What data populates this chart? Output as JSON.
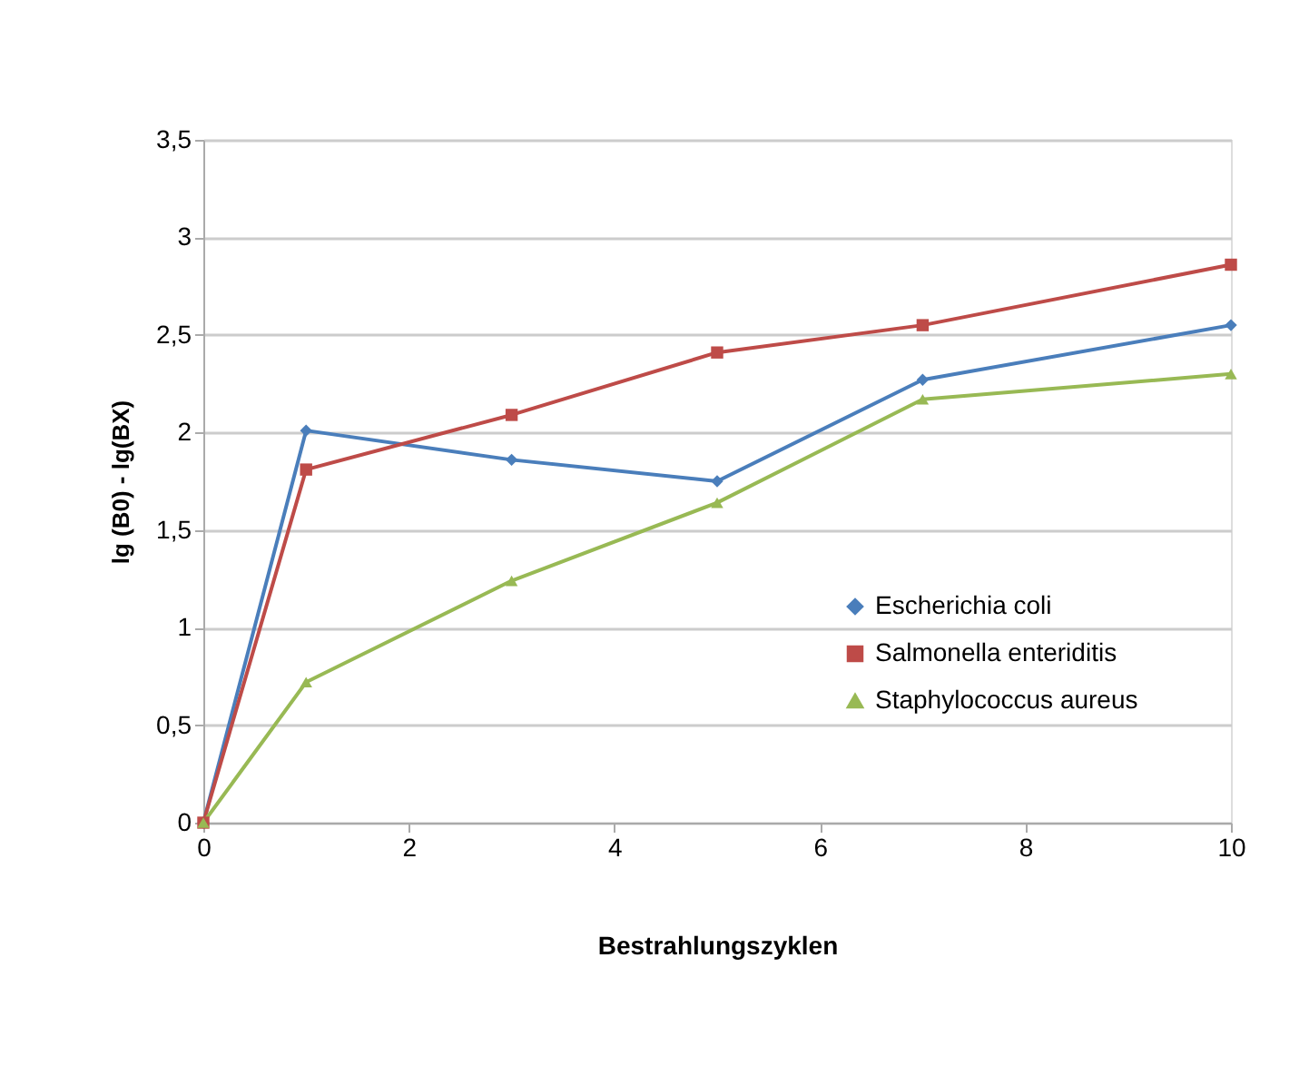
{
  "chart_data": {
    "type": "line",
    "xlabel": "Bestrahlungszyklen",
    "ylabel": "lg (B0) - lg(BX)",
    "x": [
      0,
      1,
      3,
      5,
      7,
      10
    ],
    "series": [
      {
        "name": "Escherichia coli",
        "color": "#4a7ebb",
        "marker": "diamond",
        "values": [
          0,
          2.01,
          1.86,
          1.75,
          2.27,
          2.55
        ]
      },
      {
        "name": "Salmonella enteriditis",
        "color": "#be4b48",
        "marker": "square",
        "values": [
          0,
          1.81,
          2.09,
          2.41,
          2.55,
          2.86
        ]
      },
      {
        "name": "Staphylococcus aureus",
        "color": "#98b954",
        "marker": "triangle",
        "values": [
          0,
          0.72,
          1.24,
          1.64,
          2.17,
          2.3
        ]
      }
    ],
    "xlim": [
      0,
      10
    ],
    "xticks": [
      0,
      2,
      4,
      6,
      8,
      10
    ],
    "ylim": [
      0,
      3.5
    ],
    "yticks": [
      0,
      {
        "value": 0.5,
        "label": "0,5"
      },
      1,
      {
        "value": 1.5,
        "label": "1,5"
      },
      2,
      {
        "value": 2.5,
        "label": "2,5"
      },
      3,
      {
        "value": 3.5,
        "label": "3,5"
      }
    ],
    "grid": "y",
    "legend": "right",
    "line_style": "solid"
  }
}
